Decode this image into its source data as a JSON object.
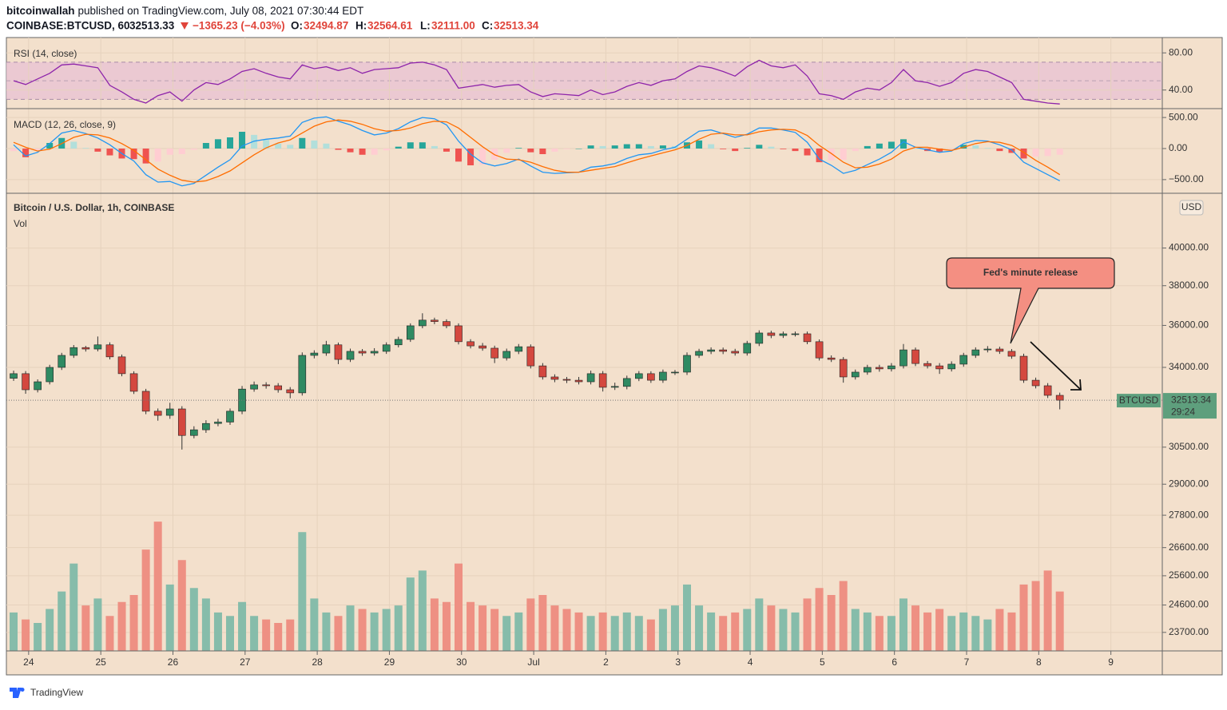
{
  "header": {
    "author": "bitcoinwallah",
    "published": "published on TradingView.com, July 08, 2021 07:30:44 EDT",
    "symbol": "COINBASE:BTCUSD, 60",
    "price": "32513.33",
    "change": "−1365.23 (−4.03%)",
    "open_label": "O:",
    "open": "32494.87",
    "high_label": "H:",
    "high": "32564.61",
    "low_label": "L:",
    "low": "32111.00",
    "close_label": "C:",
    "close": "32513.34"
  },
  "footer": {
    "brand": "TradingView"
  },
  "chart_data": [
    {
      "type": "rsi",
      "title": "RSI (14, close)",
      "color": "#8e24aa",
      "band": [
        30,
        70
      ],
      "midline": 50,
      "band_color": "#e9c3d3",
      "xlim": [
        -7.4,
        377.1
      ],
      "x": [
        -5,
        -1,
        3,
        7,
        11,
        15,
        19,
        23,
        27,
        31,
        35,
        39,
        43,
        47,
        51,
        55,
        59,
        63,
        67,
        71,
        75,
        79,
        83,
        87,
        91,
        95,
        99,
        103,
        107,
        111,
        115,
        119,
        123,
        127,
        131,
        135,
        139,
        143,
        147,
        151,
        155,
        159,
        163,
        167,
        171,
        175,
        179,
        183,
        187,
        191,
        195,
        199,
        203,
        207,
        211,
        215,
        219,
        223,
        227,
        231,
        235,
        239,
        243,
        247,
        251,
        255,
        259,
        263,
        267,
        271,
        275,
        279,
        283,
        287,
        291,
        295,
        299,
        303,
        307,
        311,
        315,
        319,
        323,
        327,
        331,
        335,
        339,
        343
      ],
      "values": [
        50,
        46,
        52,
        58,
        67,
        68,
        66,
        64,
        45,
        38,
        30,
        26,
        34,
        38,
        28,
        40,
        48,
        46,
        52,
        60,
        63,
        58,
        54,
        52,
        67,
        63,
        65,
        61,
        64,
        58,
        62,
        63,
        64,
        69,
        70,
        67,
        62,
        42,
        44,
        46,
        43,
        45,
        46,
        38,
        33,
        36,
        35,
        34,
        40,
        35,
        38,
        44,
        48,
        45,
        50,
        52,
        60,
        66,
        64,
        60,
        55,
        65,
        72,
        66,
        64,
        67,
        55,
        36,
        34,
        30,
        38,
        42,
        40,
        48,
        62,
        50,
        48,
        44,
        48,
        58,
        62,
        60,
        54,
        48,
        30,
        28,
        26,
        25
      ],
      "ylim": [
        20,
        96.5
      ],
      "yticks": [
        {
          "value": 40,
          "label": "40.00"
        },
        {
          "value": 80,
          "label": "80.00"
        }
      ]
    },
    {
      "type": "macd",
      "title": "MACD (12, 26, close, 9)",
      "xlim": [
        -7.4,
        377.1
      ],
      "x": [
        -5,
        -1,
        3,
        7,
        11,
        15,
        19,
        23,
        27,
        31,
        35,
        39,
        43,
        47,
        51,
        55,
        59,
        63,
        67,
        71,
        75,
        79,
        83,
        87,
        91,
        95,
        99,
        103,
        107,
        111,
        115,
        119,
        123,
        127,
        131,
        135,
        139,
        143,
        147,
        151,
        155,
        159,
        163,
        167,
        171,
        175,
        179,
        183,
        187,
        191,
        195,
        199,
        203,
        207,
        211,
        215,
        219,
        223,
        227,
        231,
        235,
        239,
        243,
        247,
        251,
        255,
        259,
        263,
        267,
        271,
        275,
        279,
        283,
        287,
        291,
        295,
        299,
        303,
        307,
        311,
        315,
        319,
        323,
        327,
        331,
        335,
        339,
        343
      ],
      "series": [
        {
          "color": "#2196f3",
          "values": [
            60,
            -120,
            -60,
            80,
            250,
            290,
            240,
            170,
            60,
            -80,
            -200,
            -420,
            -540,
            -530,
            -600,
            -560,
            -430,
            -300,
            -180,
            40,
            120,
            150,
            170,
            200,
            420,
            490,
            510,
            440,
            380,
            290,
            220,
            250,
            320,
            430,
            500,
            480,
            380,
            120,
            -90,
            -230,
            -280,
            -240,
            -170,
            -280,
            -380,
            -400,
            -390,
            -380,
            -300,
            -280,
            -240,
            -160,
            -100,
            -80,
            -20,
            20,
            150,
            280,
            300,
            240,
            180,
            230,
            330,
            330,
            300,
            260,
            100,
            -170,
            -270,
            -400,
            -350,
            -260,
            -170,
            -60,
            110,
            20,
            -20,
            -60,
            -40,
            80,
            130,
            120,
            60,
            -20,
            -220,
            -320,
            -420,
            -520
          ]
        },
        {
          "color": "#ff6d00",
          "values": [
            100,
            20,
            -40,
            -10,
            80,
            180,
            230,
            220,
            170,
            80,
            -30,
            -180,
            -330,
            -430,
            -510,
            -540,
            -520,
            -450,
            -360,
            -230,
            -100,
            10,
            90,
            140,
            250,
            360,
            430,
            460,
            440,
            390,
            320,
            280,
            290,
            330,
            400,
            440,
            430,
            330,
            180,
            30,
            -100,
            -170,
            -180,
            -220,
            -290,
            -350,
            -380,
            -380,
            -350,
            -320,
            -290,
            -230,
            -170,
            -120,
            -70,
            -20,
            50,
            150,
            230,
            250,
            220,
            220,
            270,
            300,
            310,
            300,
            210,
            50,
            -80,
            -220,
            -310,
            -300,
            -250,
            -170,
            -40,
            20,
            20,
            -10,
            -30,
            20,
            80,
            110,
            100,
            50,
            -60,
            -190,
            -300,
            -420
          ]
        }
      ],
      "histogram": [
        -40,
        -140,
        -20,
        90,
        170,
        110,
        10,
        -50,
        -110,
        -160,
        -170,
        -240,
        -210,
        -100,
        -90,
        -20,
        90,
        150,
        180,
        270,
        220,
        140,
        80,
        60,
        170,
        130,
        80,
        -20,
        -60,
        -100,
        -100,
        -30,
        30,
        100,
        100,
        40,
        -50,
        -210,
        -270,
        -260,
        -180,
        -70,
        10,
        -60,
        -90,
        -50,
        -10,
        0,
        50,
        40,
        50,
        70,
        70,
        40,
        50,
        40,
        100,
        130,
        70,
        -10,
        -40,
        10,
        60,
        30,
        -10,
        -40,
        -110,
        -220,
        -190,
        -180,
        -40,
        40,
        80,
        110,
        150,
        0,
        -40,
        -50,
        -10,
        60,
        50,
        10,
        -40,
        -70,
        -160,
        -130,
        -120,
        -100
      ],
      "histogram_colors": [
        "#26a69a",
        "#b2dfdb",
        "#ffcdd2",
        "#ef5350"
      ],
      "ylim": [
        -720,
        630
      ],
      "yticks": [
        {
          "value": 500,
          "label": "500.00"
        },
        {
          "value": 0,
          "label": "0.00"
        },
        {
          "value": -500,
          "label": "−500.00"
        }
      ]
    },
    {
      "type": "candlestick",
      "title": "Bitcoin / U.S. Dollar, 1h, COINBASE",
      "volume_title": "Vol",
      "currency": "USD",
      "up_color": "#2f8a62",
      "down_color": "#d4483f",
      "wick_color": "#333333",
      "volume_up_color": "#86bcaa",
      "volume_down_color": "#ee9083",
      "log_scale": true,
      "grid": true,
      "xlim": [
        -7.4,
        377.1
      ],
      "xticks": [
        {
          "value": 0,
          "label": "24"
        },
        {
          "value": 24,
          "label": "25"
        },
        {
          "value": 48,
          "label": "26"
        },
        {
          "value": 72,
          "label": "27"
        },
        {
          "value": 96,
          "label": "28"
        },
        {
          "value": 120,
          "label": "29"
        },
        {
          "value": 144,
          "label": "30"
        },
        {
          "value": 168,
          "label": "Jul"
        },
        {
          "value": 192,
          "label": "2"
        },
        {
          "value": 216,
          "label": "3"
        },
        {
          "value": 240,
          "label": "4"
        },
        {
          "value": 264,
          "label": "5"
        },
        {
          "value": 288,
          "label": "6"
        },
        {
          "value": 312,
          "label": "7"
        },
        {
          "value": 336,
          "label": "8"
        },
        {
          "value": 360,
          "label": "9"
        }
      ],
      "x": [
        -5,
        -1,
        3,
        7,
        11,
        15,
        19,
        23,
        27,
        31,
        35,
        39,
        43,
        47,
        51,
        55,
        59,
        63,
        67,
        71,
        75,
        79,
        83,
        87,
        91,
        95,
        99,
        103,
        107,
        111,
        115,
        119,
        123,
        127,
        131,
        135,
        139,
        143,
        147,
        151,
        155,
        159,
        163,
        167,
        171,
        175,
        179,
        183,
        187,
        191,
        195,
        199,
        203,
        207,
        211,
        215,
        219,
        223,
        227,
        231,
        235,
        239,
        243,
        247,
        251,
        255,
        259,
        263,
        267,
        271,
        275,
        279,
        283,
        287,
        291,
        295,
        299,
        303,
        307,
        311,
        315,
        319,
        323,
        327,
        331,
        335,
        339,
        343
      ],
      "open": [
        33500,
        33710,
        32980,
        33340,
        34000,
        34560,
        34930,
        34860,
        35060,
        34490,
        33710,
        32910,
        32030,
        31850,
        32130,
        30990,
        31230,
        31500,
        31560,
        32030,
        33010,
        33200,
        33160,
        32980,
        32840,
        34560,
        34670,
        35060,
        34370,
        34750,
        34670,
        34750,
        35060,
        35320,
        35980,
        36260,
        36190,
        35980,
        35210,
        35010,
        34900,
        34440,
        34750,
        34970,
        34070,
        33560,
        33450,
        33410,
        33340,
        33710,
        33090,
        33130,
        33490,
        33710,
        33410,
        33780,
        33780,
        34560,
        34750,
        34820,
        34750,
        34670,
        35130,
        35630,
        35510,
        35590,
        35590,
        35210,
        34440,
        34370,
        33560,
        33780,
        34000,
        33930,
        34070,
        34820,
        34180,
        34070,
        33930,
        34150,
        34560,
        34820,
        34860,
        34750,
        34520,
        33410,
        33160,
        32730
      ],
      "high": [
        33850,
        33830,
        33450,
        34120,
        34680,
        35050,
        35010,
        35460,
        35180,
        34600,
        33820,
        33020,
        32150,
        32400,
        32250,
        31380,
        31640,
        31700,
        32150,
        33150,
        33350,
        33320,
        33280,
        33100,
        34700,
        34800,
        35250,
        35170,
        34880,
        34860,
        34900,
        35180,
        35450,
        36100,
        36600,
        36380,
        36300,
        36100,
        35330,
        35150,
        35020,
        34880,
        35100,
        35080,
        34200,
        33680,
        33560,
        33560,
        33850,
        33830,
        33300,
        33620,
        33830,
        33820,
        33900,
        33880,
        34700,
        34870,
        34940,
        34930,
        34870,
        35250,
        35760,
        35740,
        35700,
        35700,
        35700,
        35320,
        34560,
        34480,
        33900,
        34120,
        34120,
        34200,
        35100,
        34930,
        34300,
        34200,
        34280,
        34680,
        34940,
        35000,
        34970,
        34860,
        34640,
        33530,
        33280,
        32850
      ],
      "low": [
        33380,
        32800,
        32860,
        33220,
        33880,
        34440,
        34740,
        34750,
        34370,
        33590,
        32790,
        31900,
        31620,
        31700,
        30400,
        30870,
        31100,
        31380,
        31440,
        31900,
        32890,
        33030,
        32850,
        32600,
        32720,
        34420,
        34540,
        34150,
        34250,
        34540,
        34550,
        34630,
        34940,
        35200,
        35860,
        36060,
        35860,
        35080,
        34890,
        34780,
        34200,
        34320,
        34620,
        33950,
        33440,
        33320,
        33280,
        33220,
        33220,
        32900,
        32970,
        33000,
        33370,
        33290,
        33290,
        33650,
        33650,
        34440,
        34620,
        34620,
        34550,
        34550,
        35000,
        35380,
        35390,
        35460,
        35090,
        34320,
        34250,
        33300,
        33440,
        33660,
        33800,
        33810,
        33950,
        34060,
        33950,
        33700,
        33810,
        34030,
        34440,
        34700,
        34630,
        34400,
        33290,
        33040,
        32610,
        32111
      ],
      "close": [
        33710,
        32980,
        33340,
        34000,
        34560,
        34930,
        34860,
        35060,
        34490,
        33710,
        32910,
        32030,
        31850,
        32130,
        30990,
        31230,
        31500,
        31560,
        32030,
        33010,
        33200,
        33160,
        32980,
        32840,
        34560,
        34670,
        35060,
        34370,
        34750,
        34670,
        34750,
        35060,
        35320,
        35980,
        36260,
        36190,
        35980,
        35210,
        35010,
        34900,
        34440,
        34750,
        34970,
        34070,
        33560,
        33450,
        33410,
        33340,
        33710,
        33090,
        33130,
        33490,
        33710,
        33410,
        33780,
        33780,
        34560,
        34750,
        34820,
        34750,
        34670,
        35130,
        35630,
        35510,
        35590,
        35590,
        35210,
        34440,
        34370,
        33560,
        33780,
        34000,
        33930,
        34070,
        34820,
        34180,
        34070,
        33930,
        34150,
        34560,
        34820,
        34860,
        34750,
        34520,
        33410,
        33160,
        32730,
        32513.34
      ],
      "volume": [
        1100,
        900,
        800,
        1200,
        1700,
        2500,
        1300,
        1500,
        1000,
        1400,
        1600,
        2900,
        3700,
        1900,
        2600,
        1800,
        1500,
        1100,
        1000,
        1400,
        1000,
        900,
        800,
        900,
        3400,
        1500,
        1100,
        1000,
        1300,
        1200,
        1100,
        1200,
        1300,
        2100,
        2300,
        1500,
        1400,
        2500,
        1400,
        1300,
        1200,
        1000,
        1100,
        1500,
        1600,
        1300,
        1200,
        1100,
        1000,
        1100,
        1000,
        1100,
        1000,
        900,
        1200,
        1300,
        1900,
        1300,
        1100,
        1000,
        1100,
        1200,
        1500,
        1300,
        1200,
        1100,
        1500,
        1800,
        1600,
        2000,
        1200,
        1100,
        1000,
        1000,
        1500,
        1300,
        1100,
        1200,
        1000,
        1100,
        1000,
        900,
        1200,
        1100,
        1900,
        2000,
        2300,
        1700
      ],
      "volume_ylim": [
        0,
        4000
      ],
      "ylim": [
        23110,
        43050
      ],
      "yticks": [
        {
          "value": 23700,
          "label": "23700.00"
        },
        {
          "value": 24600,
          "label": "24600.00"
        },
        {
          "value": 25600,
          "label": "25600.00"
        },
        {
          "value": 26600,
          "label": "26600.00"
        },
        {
          "value": 27800,
          "label": "27800.00"
        },
        {
          "value": 29000,
          "label": "29000.00"
        },
        {
          "value": 30500,
          "label": "30500.00"
        },
        {
          "value": 34000,
          "label": "34000.00"
        },
        {
          "value": 36000,
          "label": "36000.00"
        },
        {
          "value": 38000,
          "label": "38000.00"
        },
        {
          "value": 40000,
          "label": "40000.00"
        }
      ],
      "last_price": {
        "symbol": "BTCUSD",
        "value": 32513.34,
        "countdown": "29:24",
        "color": "#5e9f7d"
      },
      "annotation": "Fed's minute release"
    }
  ]
}
